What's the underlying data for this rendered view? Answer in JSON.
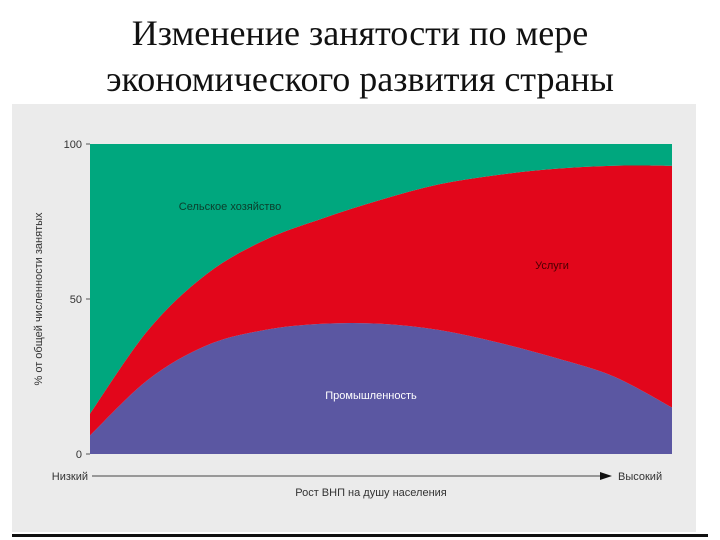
{
  "title_line1": "Изменение занятости по мере",
  "title_line2": "экономического развития страны",
  "chart_data": {
    "type": "area",
    "stacked": true,
    "ylabel": "% от общей численности занятых",
    "xlabel": "Рост ВНП на душу населения",
    "x_start_label": "Низкий",
    "x_end_label": "Высокий",
    "ylim": [
      0,
      100
    ],
    "yticks": [
      "0",
      "50",
      "100"
    ],
    "x": [
      0,
      10,
      20,
      30,
      40,
      50,
      60,
      70,
      80,
      90,
      100
    ],
    "series": [
      {
        "name": "Промышленность",
        "color": "#5b57a2",
        "values": [
          6,
          24,
          35,
          40,
          42,
          42,
          40,
          36,
          31,
          25,
          15
        ]
      },
      {
        "name": "Услуги",
        "color": "#e2061b",
        "values": [
          7,
          16,
          23,
          29,
          34,
          40,
          47,
          54,
          61,
          68,
          78
        ]
      },
      {
        "name": "Сельское хозяйство",
        "color": "#00a77e",
        "values": [
          87,
          60,
          42,
          31,
          24,
          18,
          13,
          10,
          8,
          7,
          7
        ]
      }
    ]
  }
}
